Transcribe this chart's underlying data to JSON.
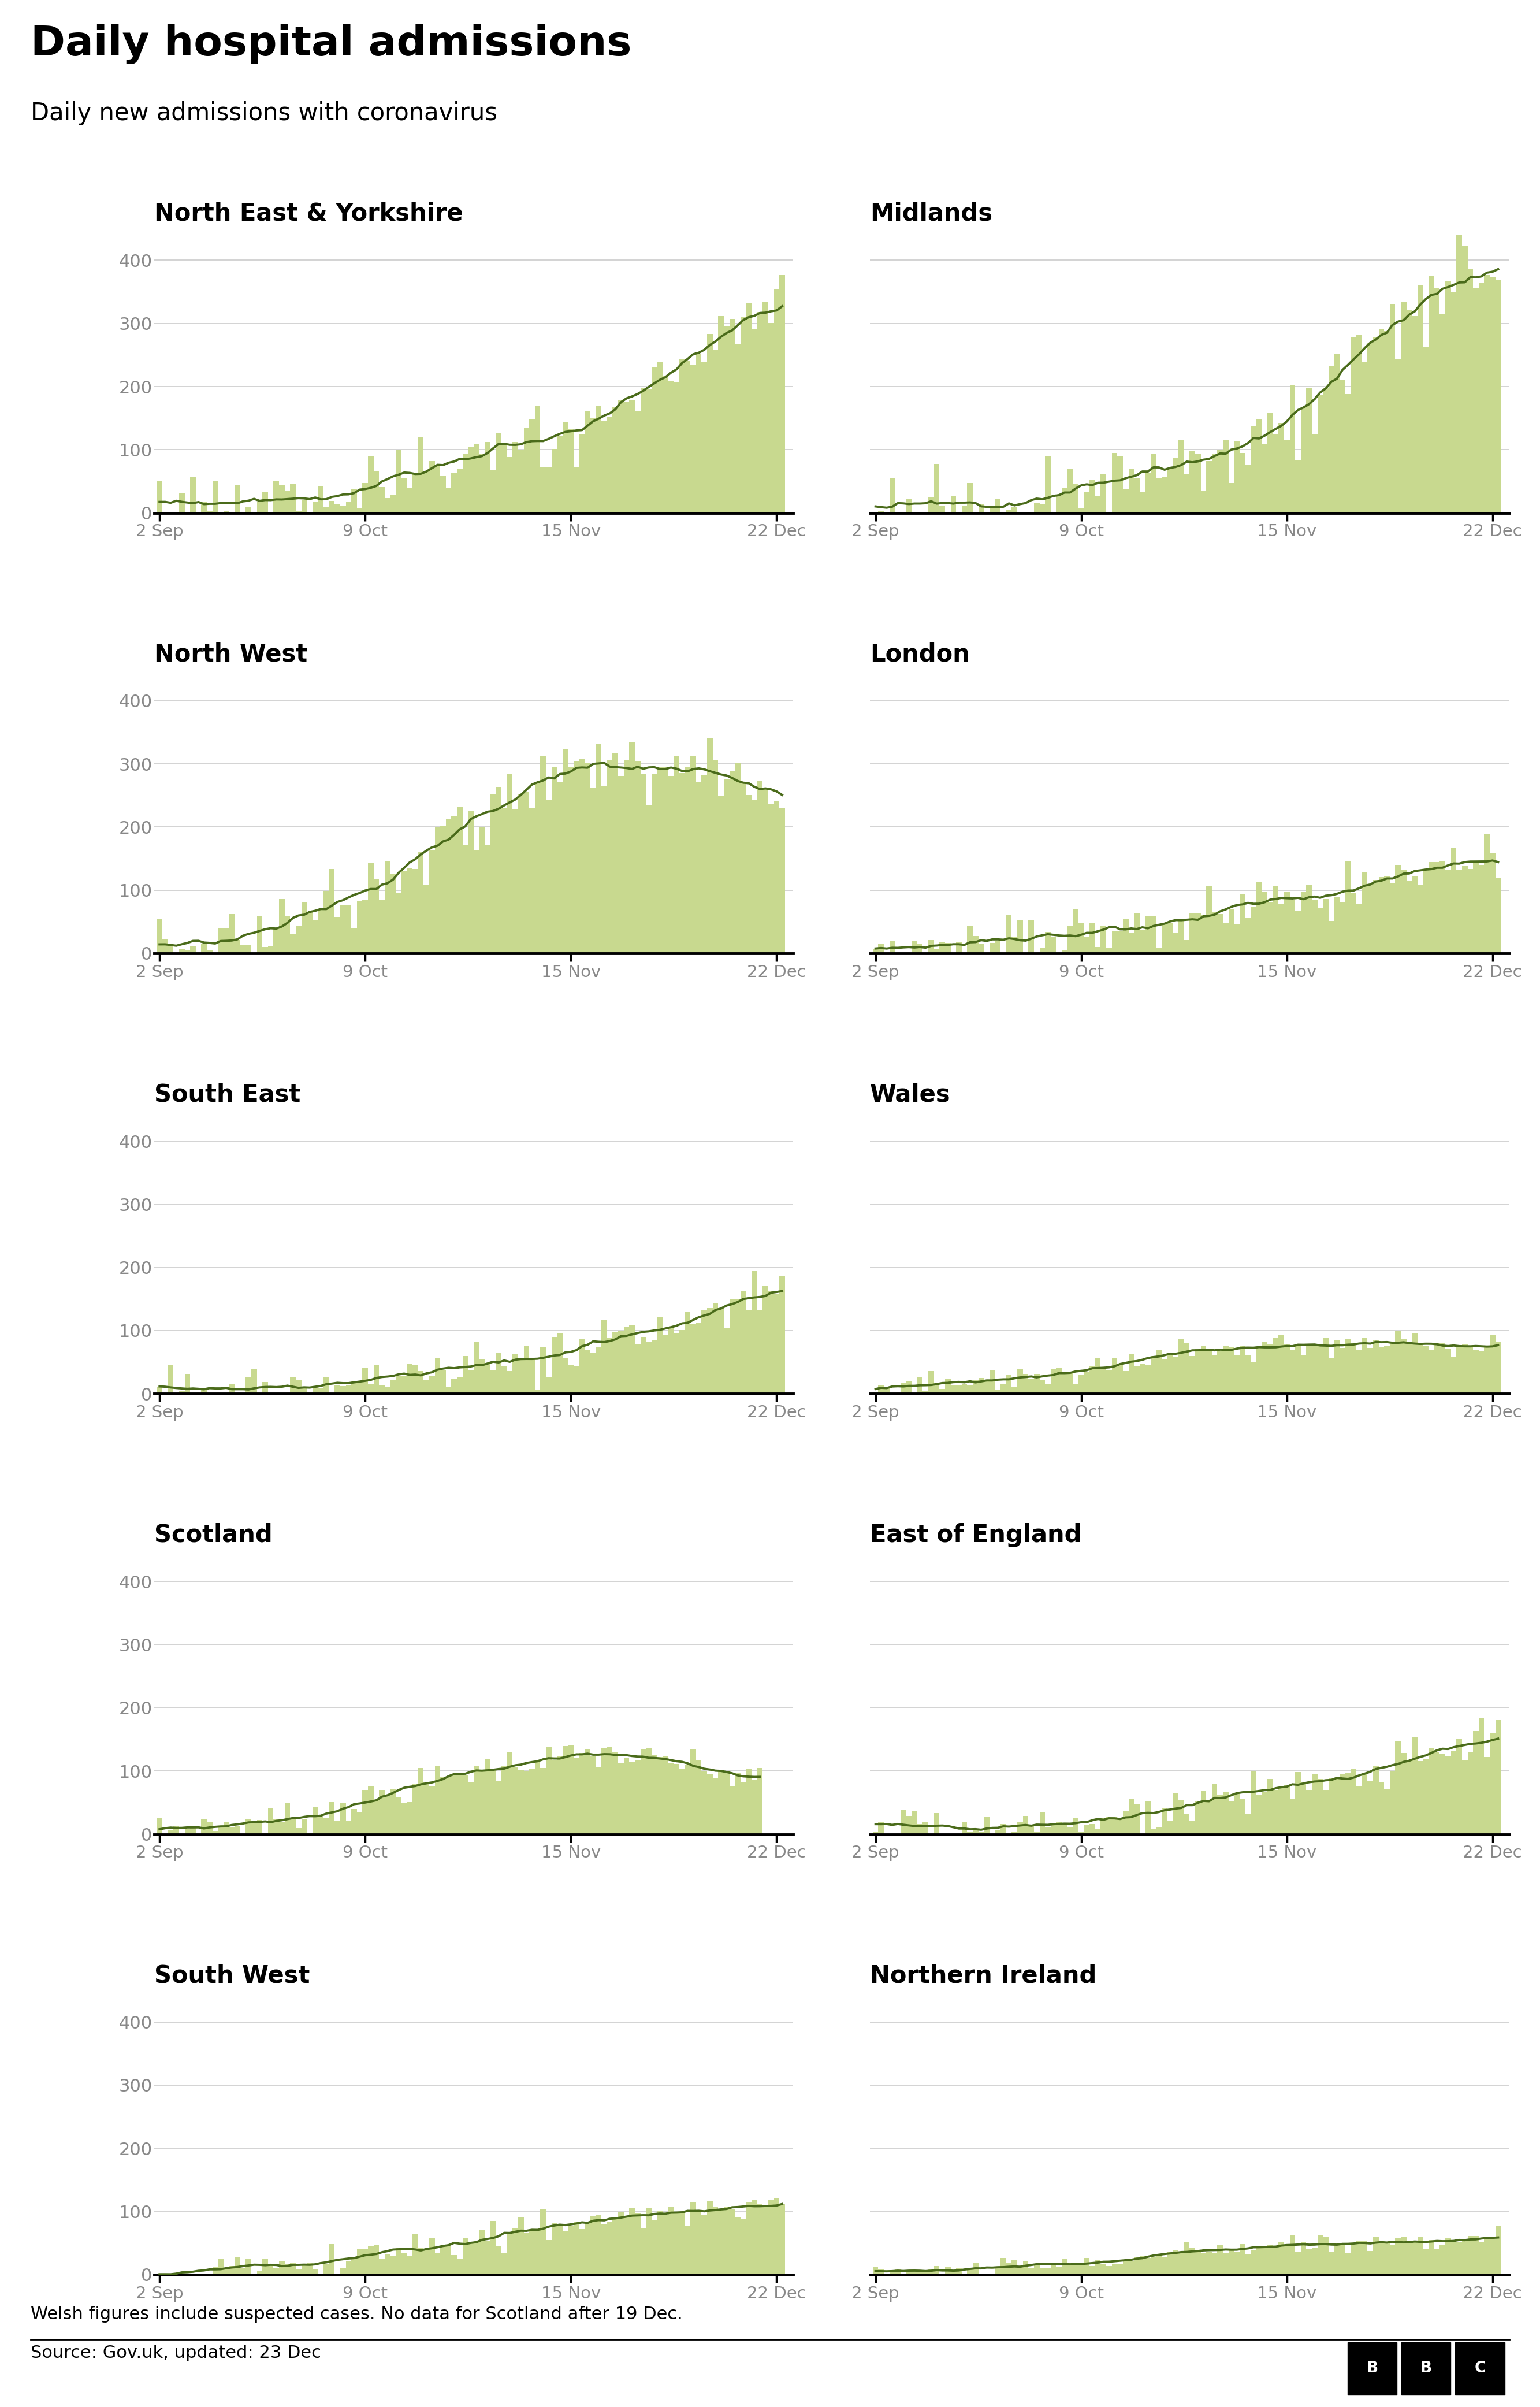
{
  "title": "Daily hospital admissions",
  "subtitle": "Daily new admissions with coronavirus",
  "footnote": "Welsh figures include suspected cases. No data for Scotland after 19 Dec.",
  "source": "Source: Gov.uk, updated: 23 Dec",
  "bar_color": "#c8d98f",
  "line_color": "#4a6b1a",
  "ytick_color": "#888888",
  "xtick_color": "#888888",
  "grid_color": "#cccccc",
  "subplots": [
    {
      "title": "North East & Yorkshire",
      "row": 0,
      "col": 0
    },
    {
      "title": "Midlands",
      "row": 0,
      "col": 1
    },
    {
      "title": "North West",
      "row": 1,
      "col": 0
    },
    {
      "title": "London",
      "row": 1,
      "col": 1
    },
    {
      "title": "South East",
      "row": 2,
      "col": 0
    },
    {
      "title": "Wales",
      "row": 2,
      "col": 1
    },
    {
      "title": "Scotland",
      "row": 3,
      "col": 0
    },
    {
      "title": "East of England",
      "row": 3,
      "col": 1
    },
    {
      "title": "South West",
      "row": 4,
      "col": 0
    },
    {
      "title": "Northern Ireland",
      "row": 4,
      "col": 1
    }
  ],
  "xtick_labels": [
    "2 Sep",
    "9 Oct",
    "15 Nov",
    "22 Dec"
  ],
  "yticks": [
    0,
    100,
    200,
    300,
    400
  ],
  "ylim": [
    0,
    450
  ]
}
